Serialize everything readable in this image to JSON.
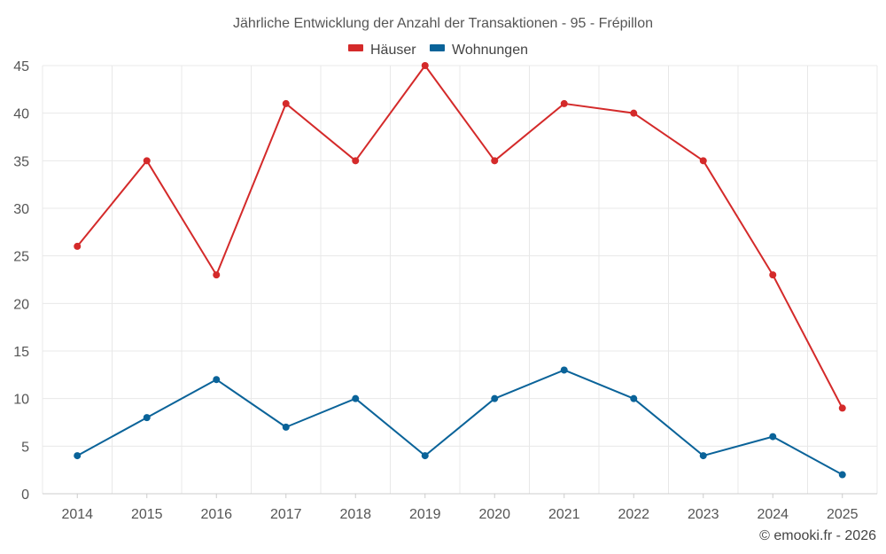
{
  "chart_data": {
    "type": "line",
    "title": "Jährliche Entwicklung der Anzahl der Transaktionen - 95 - Frépillon",
    "categories": [
      "2014",
      "2015",
      "2016",
      "2017",
      "2018",
      "2019",
      "2020",
      "2021",
      "2022",
      "2023",
      "2024",
      "2025"
    ],
    "series": [
      {
        "name": "Häuser",
        "color": "#d42a2a",
        "values": [
          26,
          35,
          23,
          41,
          35,
          45,
          35,
          41,
          40,
          35,
          23,
          9
        ]
      },
      {
        "name": "Wohnungen",
        "color": "#0a6399",
        "values": [
          4,
          8,
          12,
          7,
          10,
          4,
          10,
          13,
          10,
          4,
          6,
          2
        ]
      }
    ],
    "ylim": [
      0,
      45
    ],
    "yticks": [
      "0",
      "5",
      "10",
      "15",
      "20",
      "25",
      "30",
      "35",
      "40",
      "45"
    ],
    "xlabel": "",
    "ylabel": "",
    "grid": true,
    "legend_position": "top-center"
  },
  "credit": "© emooki.fr - 2026"
}
